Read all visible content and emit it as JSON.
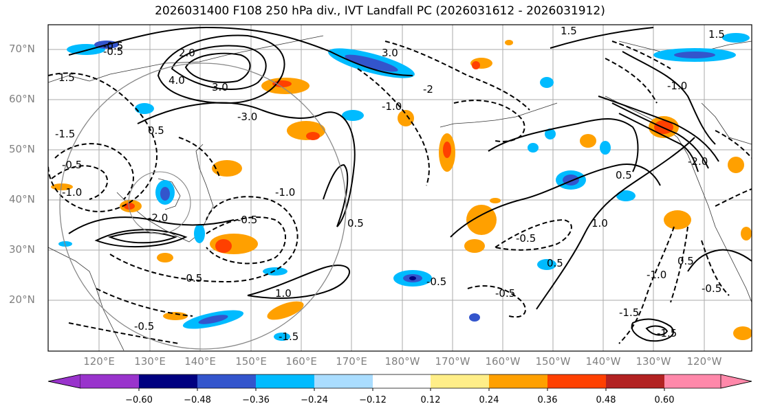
{
  "title": "2026031400 F108 250 hPa div., IVT Landfall PC (2026031612 - 2026031912)",
  "map": {
    "lat_labels": [
      "70°N",
      "60°N",
      "50°N",
      "40°N",
      "30°N",
      "20°N"
    ],
    "lon_labels": [
      "120°E",
      "130°E",
      "140°E",
      "150°E",
      "160°E",
      "170°E",
      "180°W",
      "170°W",
      "160°W",
      "150°W",
      "140°W",
      "130°W",
      "120°W"
    ],
    "contour_labels": [
      "-0.5",
      "1.5",
      "2.0",
      "4.0",
      "3.0",
      "-3.0",
      "3.0",
      "-2",
      "-1.0",
      "-0.5",
      "0.5",
      "-1.5",
      "-0.5",
      "-1.0",
      "-1.0",
      "-2.0",
      "-0.5",
      "1.0",
      "-0.5",
      "0.5",
      "0.5",
      "1.0",
      "-0.5",
      "-0.5",
      "-1.0",
      "1.5",
      "-0.5",
      "0.5",
      "0.5",
      "-0.5",
      "-1.0",
      "-1.5",
      "-1.5",
      "-2.0",
      "-0.5",
      "1.5",
      "-1.5"
    ]
  },
  "colorbar": {
    "ticks": [
      "−0.60",
      "−0.48",
      "−0.36",
      "−0.24",
      "−0.12",
      "0.12",
      "0.24",
      "0.36",
      "0.48",
      "0.60"
    ],
    "colors": [
      "#9933cc",
      "#000080",
      "#3355cc",
      "#00bbff",
      "#aaddff",
      "#ffffff",
      "#ffee88",
      "#ffa000",
      "#ff4000",
      "#b22222",
      "#ff88aa"
    ]
  }
}
